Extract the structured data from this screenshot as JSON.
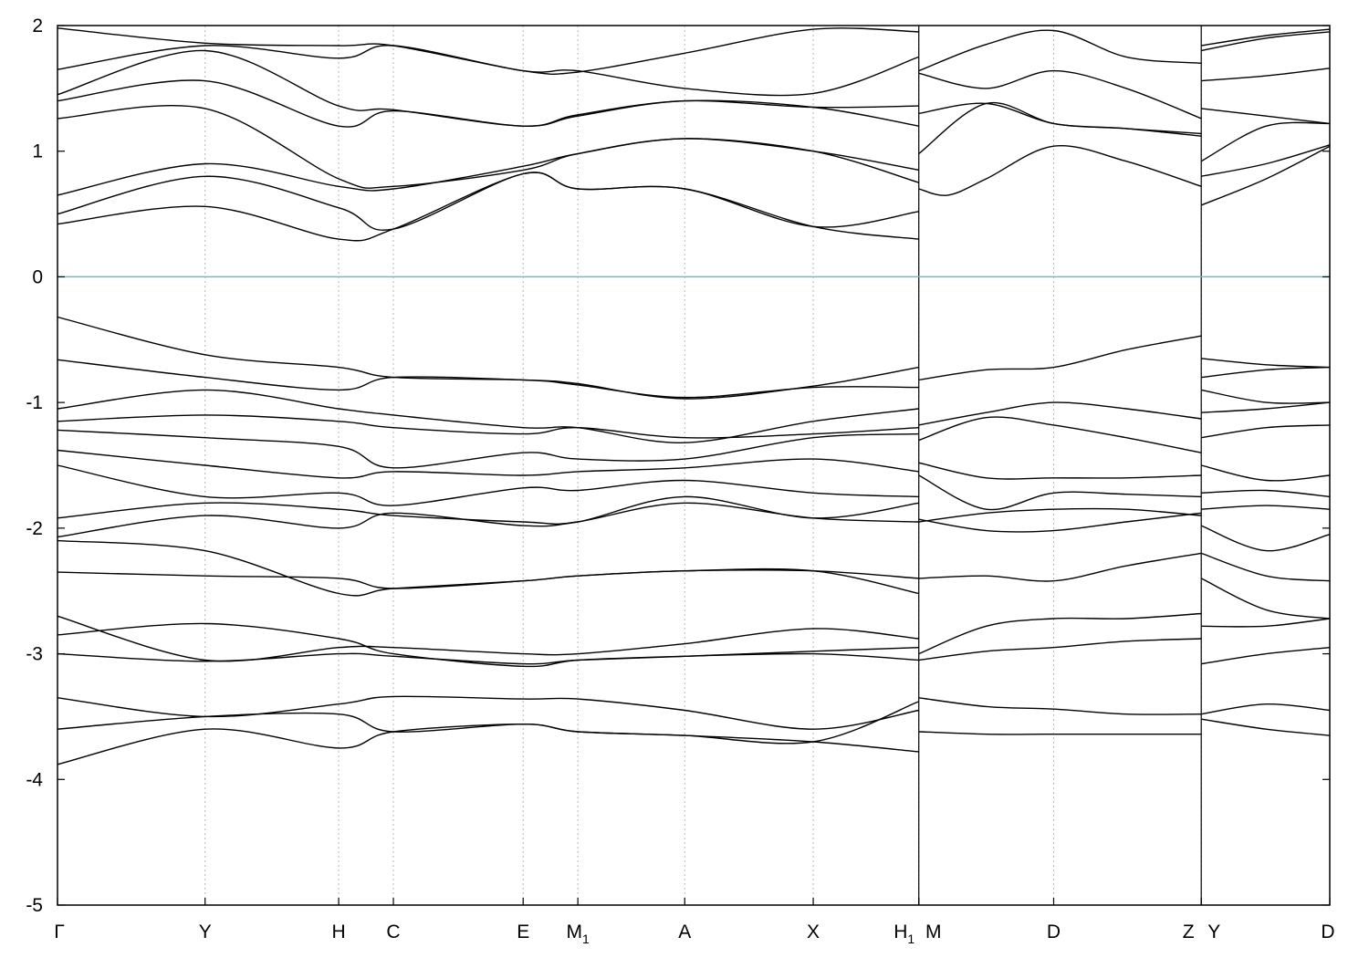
{
  "chart_data": {
    "type": "line",
    "title": "",
    "xlabel": "",
    "ylabel": "",
    "ylim": [
      -5,
      2
    ],
    "yticks": [
      "2",
      "1",
      "0",
      "-1",
      "-2",
      "-3",
      "-4",
      "-5"
    ],
    "ytick_values": [
      2,
      1,
      0,
      -1,
      -2,
      -3,
      -4,
      -5
    ],
    "grid": "vertical dashed lines at high-symmetry points",
    "legend": "none",
    "fermi_level": {
      "value": 0,
      "color": "#6fb7c9"
    },
    "band_color": "#000000",
    "kpoints": [
      {
        "label": "Γ",
        "sub": "",
        "x": 0.0
      },
      {
        "label": "Y",
        "sub": "",
        "x": 1.16
      },
      {
        "label": "H",
        "sub": "",
        "x": 2.21
      },
      {
        "label": "C",
        "sub": "",
        "x": 2.64
      },
      {
        "label": "E",
        "sub": "",
        "x": 3.66
      },
      {
        "label": "M",
        "sub": "1",
        "x": 4.09
      },
      {
        "label": "A",
        "sub": "",
        "x": 4.93
      },
      {
        "label": "X",
        "sub": "",
        "x": 5.94
      },
      {
        "label": "H",
        "sub": "1",
        "x": 6.77
      },
      {
        "label": "M",
        "sub": "",
        "x": 6.77
      },
      {
        "label": "D",
        "sub": "",
        "x": 7.83
      },
      {
        "label": "Z",
        "sub": "",
        "x": 8.99
      },
      {
        "label": "Y",
        "sub": "",
        "x": 8.99
      },
      {
        "label": "D",
        "sub": "",
        "x": 10.0
      }
    ],
    "segments": [
      [
        0,
        6.77
      ],
      [
        6.77,
        8.99
      ],
      [
        8.99,
        10.0
      ]
    ],
    "series": [
      {
        "segment": 0,
        "x": [
          0,
          1.16,
          2.21,
          2.64,
          3.66,
          4.09,
          4.93,
          5.94,
          6.77
        ],
        "values": [
          -0.32,
          -0.62,
          -0.72,
          -0.8,
          -0.82,
          -0.85,
          -0.97,
          -0.87,
          -0.72
        ]
      },
      {
        "segment": 0,
        "x": [
          0,
          1.16,
          2.21,
          2.64,
          3.66,
          4.09,
          4.93,
          5.94,
          6.77
        ],
        "values": [
          -0.66,
          -0.8,
          -0.9,
          -0.8,
          -0.82,
          -0.86,
          -0.96,
          -0.88,
          -0.88
        ]
      },
      {
        "segment": 0,
        "x": [
          0,
          1.16,
          2.21,
          2.64,
          3.66,
          4.09,
          4.93,
          5.94,
          6.77
        ],
        "values": [
          -1.05,
          -0.9,
          -1.05,
          -1.1,
          -1.2,
          -1.2,
          -1.32,
          -1.15,
          -1.05
        ]
      },
      {
        "segment": 0,
        "x": [
          0,
          1.16,
          2.21,
          2.64,
          3.66,
          4.09,
          4.93,
          5.94,
          6.77
        ],
        "values": [
          -1.15,
          -1.1,
          -1.15,
          -1.2,
          -1.25,
          -1.2,
          -1.28,
          -1.25,
          -1.2
        ]
      },
      {
        "segment": 0,
        "x": [
          0,
          1.16,
          2.21,
          2.64,
          3.66,
          4.09,
          4.93,
          5.94,
          6.77
        ],
        "values": [
          -1.22,
          -1.28,
          -1.35,
          -1.52,
          -1.4,
          -1.45,
          -1.45,
          -1.28,
          -1.25
        ]
      },
      {
        "segment": 0,
        "x": [
          0,
          1.16,
          2.21,
          2.64,
          3.66,
          4.09,
          4.93,
          5.94,
          6.77
        ],
        "values": [
          -1.38,
          -1.5,
          -1.6,
          -1.55,
          -1.58,
          -1.55,
          -1.52,
          -1.45,
          -1.55
        ]
      },
      {
        "segment": 0,
        "x": [
          0,
          1.16,
          2.21,
          2.64,
          3.66,
          4.09,
          4.93,
          5.94,
          6.77
        ],
        "values": [
          -1.5,
          -1.75,
          -1.72,
          -1.82,
          -1.68,
          -1.7,
          -1.62,
          -1.72,
          -1.75
        ]
      },
      {
        "segment": 0,
        "x": [
          0,
          1.16,
          2.21,
          2.64,
          3.66,
          4.09,
          4.93,
          5.94,
          6.77
        ],
        "values": [
          -1.92,
          -1.8,
          -1.85,
          -1.9,
          -1.95,
          -1.95,
          -1.75,
          -1.92,
          -1.8
        ]
      },
      {
        "segment": 0,
        "x": [
          0,
          1.16,
          2.21,
          2.64,
          3.66,
          4.09,
          4.93,
          5.94,
          6.77
        ],
        "values": [
          -2.07,
          -1.9,
          -2.0,
          -1.88,
          -1.98,
          -1.95,
          -1.8,
          -1.92,
          -1.95
        ]
      },
      {
        "segment": 0,
        "x": [
          0,
          1.16,
          2.21,
          2.64,
          3.66,
          4.09,
          4.93,
          5.94,
          6.77
        ],
        "values": [
          -2.1,
          -2.18,
          -2.52,
          -2.48,
          -2.42,
          -2.38,
          -2.34,
          -2.34,
          -2.52
        ]
      },
      {
        "segment": 0,
        "x": [
          0,
          1.16,
          2.21,
          2.64,
          3.66,
          4.09,
          4.93,
          5.94,
          6.77
        ],
        "values": [
          -2.35,
          -2.38,
          -2.4,
          -2.48,
          -2.42,
          -2.38,
          -2.34,
          -2.34,
          -2.4
        ]
      },
      {
        "segment": 0,
        "x": [
          0,
          1.16,
          2.21,
          2.64,
          3.66,
          4.09,
          4.93,
          5.94,
          6.77
        ],
        "values": [
          -2.7,
          -3.05,
          -2.95,
          -2.95,
          -3.0,
          -3.0,
          -2.92,
          -2.8,
          -2.88
        ]
      },
      {
        "segment": 0,
        "x": [
          0,
          1.16,
          2.21,
          2.64,
          3.66,
          4.09,
          4.93,
          5.94,
          6.77
        ],
        "values": [
          -2.85,
          -2.76,
          -2.88,
          -3.0,
          -3.1,
          -3.05,
          -3.02,
          -3.0,
          -3.05
        ]
      },
      {
        "segment": 0,
        "x": [
          0,
          1.16,
          2.21,
          2.64,
          3.66,
          4.09,
          4.93,
          5.94,
          6.77
        ],
        "values": [
          -3.0,
          -3.06,
          -3.0,
          -3.02,
          -3.08,
          -3.05,
          -3.02,
          -2.98,
          -2.95
        ]
      },
      {
        "segment": 0,
        "x": [
          0,
          1.16,
          2.21,
          2.64,
          3.66,
          4.09,
          4.93,
          5.94,
          6.77
        ],
        "values": [
          -3.35,
          -3.5,
          -3.4,
          -3.34,
          -3.36,
          -3.36,
          -3.45,
          -3.6,
          -3.45
        ]
      },
      {
        "segment": 0,
        "x": [
          0,
          1.16,
          2.21,
          2.64,
          3.66,
          4.09,
          4.93,
          5.94,
          6.77
        ],
        "values": [
          -3.6,
          -3.5,
          -3.48,
          -3.62,
          -3.56,
          -3.62,
          -3.65,
          -3.7,
          -3.38
        ]
      },
      {
        "segment": 0,
        "x": [
          0,
          1.16,
          2.21,
          2.64,
          3.66,
          4.09,
          4.93,
          5.94,
          6.77
        ],
        "values": [
          -3.88,
          -3.6,
          -3.75,
          -3.62,
          -3.56,
          -3.62,
          -3.65,
          -3.7,
          -3.78
        ]
      },
      {
        "segment": 0,
        "x": [
          0,
          1.16,
          2.21,
          2.64,
          3.66,
          4.09,
          4.93,
          5.94,
          6.77
        ],
        "values": [
          0.42,
          0.56,
          0.3,
          0.38,
          0.82,
          0.7,
          0.7,
          0.4,
          0.3
        ]
      },
      {
        "segment": 0,
        "x": [
          0,
          1.16,
          2.21,
          2.64,
          3.66,
          4.09,
          4.93,
          5.94,
          6.77
        ],
        "values": [
          0.5,
          0.8,
          0.55,
          0.38,
          0.82,
          0.7,
          0.7,
          0.4,
          0.52
        ]
      },
      {
        "segment": 0,
        "x": [
          0,
          1.16,
          2.21,
          2.64,
          3.66,
          4.09,
          4.93,
          5.94,
          6.77
        ],
        "values": [
          0.65,
          0.9,
          0.72,
          0.7,
          0.88,
          0.98,
          1.1,
          1.0,
          0.75
        ]
      },
      {
        "segment": 0,
        "x": [
          0,
          1.16,
          2.21,
          2.64,
          3.66,
          4.09,
          4.93,
          5.94,
          6.77
        ],
        "values": [
          1.26,
          1.34,
          0.78,
          0.72,
          0.85,
          0.98,
          1.1,
          1.0,
          0.85
        ]
      },
      {
        "segment": 0,
        "x": [
          0,
          1.16,
          2.21,
          2.64,
          3.66,
          4.09,
          4.93,
          5.94,
          6.77
        ],
        "values": [
          1.4,
          1.56,
          1.2,
          1.32,
          1.2,
          1.28,
          1.4,
          1.35,
          1.2
        ]
      },
      {
        "segment": 0,
        "x": [
          0,
          1.16,
          2.21,
          2.64,
          3.66,
          4.09,
          4.93,
          5.94,
          6.77
        ],
        "values": [
          1.45,
          1.8,
          1.36,
          1.33,
          1.2,
          1.29,
          1.4,
          1.35,
          1.36
        ]
      },
      {
        "segment": 0,
        "x": [
          0,
          1.16,
          2.21,
          2.64,
          3.66,
          4.09,
          4.93,
          5.94,
          6.77
        ],
        "values": [
          1.65,
          1.84,
          1.74,
          1.84,
          1.64,
          1.64,
          1.5,
          1.46,
          1.75
        ]
      },
      {
        "segment": 0,
        "x": [
          0,
          1.16,
          2.21,
          2.64,
          3.66,
          4.09,
          4.93,
          5.94,
          6.77
        ],
        "values": [
          1.98,
          1.86,
          1.84,
          1.84,
          1.64,
          1.63,
          1.78,
          1.97,
          1.95
        ]
      },
      {
        "segment": 1,
        "x": [
          6.77,
          7.3,
          7.83,
          8.4,
          8.99
        ],
        "values": [
          -0.82,
          -0.74,
          -0.72,
          -0.58,
          -0.47
        ]
      },
      {
        "segment": 1,
        "x": [
          6.77,
          7.3,
          7.83,
          8.4,
          8.99
        ],
        "values": [
          -1.18,
          -1.08,
          -1.0,
          -1.05,
          -1.13
        ]
      },
      {
        "segment": 1,
        "x": [
          6.77,
          7.3,
          7.83,
          8.4,
          8.99
        ],
        "values": [
          -1.3,
          -1.12,
          -1.18,
          -1.28,
          -1.4
        ]
      },
      {
        "segment": 1,
        "x": [
          6.77,
          7.3,
          7.83,
          8.4,
          8.99
        ],
        "values": [
          -1.48,
          -1.6,
          -1.6,
          -1.6,
          -1.58
        ]
      },
      {
        "segment": 1,
        "x": [
          6.77,
          7.3,
          7.83,
          8.4,
          8.99
        ],
        "values": [
          -1.58,
          -1.85,
          -1.72,
          -1.73,
          -1.75
        ]
      },
      {
        "segment": 1,
        "x": [
          6.77,
          7.3,
          7.83,
          8.4,
          8.99
        ],
        "values": [
          -1.93,
          -2.02,
          -2.02,
          -1.95,
          -1.88
        ]
      },
      {
        "segment": 1,
        "x": [
          6.77,
          7.3,
          7.83,
          8.4,
          8.99
        ],
        "values": [
          -1.95,
          -1.88,
          -1.85,
          -1.85,
          -1.9
        ]
      },
      {
        "segment": 1,
        "x": [
          6.77,
          7.3,
          7.83,
          8.4,
          8.99
        ],
        "values": [
          -2.4,
          -2.38,
          -2.42,
          -2.3,
          -2.2
        ]
      },
      {
        "segment": 1,
        "x": [
          6.77,
          7.3,
          7.83,
          8.4,
          8.99
        ],
        "values": [
          -3.0,
          -2.78,
          -2.72,
          -2.72,
          -2.68
        ]
      },
      {
        "segment": 1,
        "x": [
          6.77,
          7.3,
          7.83,
          8.4,
          8.99
        ],
        "values": [
          -3.05,
          -2.98,
          -2.95,
          -2.9,
          -2.88
        ]
      },
      {
        "segment": 1,
        "x": [
          6.77,
          7.3,
          7.83,
          8.4,
          8.99
        ],
        "values": [
          -3.35,
          -3.42,
          -3.44,
          -3.48,
          -3.48
        ]
      },
      {
        "segment": 1,
        "x": [
          6.77,
          7.3,
          7.83,
          8.4,
          8.99
        ],
        "values": [
          -3.62,
          -3.64,
          -3.64,
          -3.64,
          -3.64
        ]
      },
      {
        "segment": 1,
        "x": [
          6.77,
          7.0,
          7.3,
          7.83,
          8.4,
          8.99
        ],
        "values": [
          0.7,
          0.65,
          0.78,
          1.04,
          0.92,
          0.72
        ]
      },
      {
        "segment": 1,
        "x": [
          6.77,
          7.3,
          7.83,
          8.4,
          8.99
        ],
        "values": [
          0.98,
          1.38,
          1.22,
          1.18,
          1.12
        ]
      },
      {
        "segment": 1,
        "x": [
          6.77,
          7.3,
          7.83,
          8.4,
          8.99
        ],
        "values": [
          1.3,
          1.38,
          1.22,
          1.18,
          1.14
        ]
      },
      {
        "segment": 1,
        "x": [
          6.77,
          7.3,
          7.83,
          8.4,
          8.99
        ],
        "values": [
          1.62,
          1.5,
          1.64,
          1.5,
          1.26
        ]
      },
      {
        "segment": 1,
        "x": [
          6.77,
          7.3,
          7.83,
          8.4,
          8.99
        ],
        "values": [
          1.64,
          1.85,
          1.96,
          1.75,
          1.7
        ]
      },
      {
        "segment": 2,
        "x": [
          8.99,
          9.5,
          10.0
        ],
        "values": [
          -0.65,
          -0.7,
          -0.72
        ]
      },
      {
        "segment": 2,
        "x": [
          8.99,
          9.5,
          10.0
        ],
        "values": [
          -0.8,
          -0.74,
          -0.72
        ]
      },
      {
        "segment": 2,
        "x": [
          8.99,
          9.5,
          10.0
        ],
        "values": [
          -0.9,
          -1.0,
          -1.0
        ]
      },
      {
        "segment": 2,
        "x": [
          8.99,
          9.5,
          10.0
        ],
        "values": [
          -1.08,
          -1.05,
          -1.0
        ]
      },
      {
        "segment": 2,
        "x": [
          8.99,
          9.5,
          10.0
        ],
        "values": [
          -1.28,
          -1.2,
          -1.18
        ]
      },
      {
        "segment": 2,
        "x": [
          8.99,
          9.5,
          10.0
        ],
        "values": [
          -1.5,
          -1.62,
          -1.58
        ]
      },
      {
        "segment": 2,
        "x": [
          8.99,
          9.5,
          10.0
        ],
        "values": [
          -1.72,
          -1.7,
          -1.75
        ]
      },
      {
        "segment": 2,
        "x": [
          8.99,
          9.5,
          10.0
        ],
        "values": [
          -1.85,
          -1.82,
          -1.85
        ]
      },
      {
        "segment": 2,
        "x": [
          8.99,
          9.5,
          10.0
        ],
        "values": [
          -1.98,
          -2.18,
          -2.05
        ]
      },
      {
        "segment": 2,
        "x": [
          8.99,
          9.5,
          10.0
        ],
        "values": [
          -2.2,
          -2.38,
          -2.42
        ]
      },
      {
        "segment": 2,
        "x": [
          8.99,
          9.5,
          10.0
        ],
        "values": [
          -2.4,
          -2.65,
          -2.72
        ]
      },
      {
        "segment": 2,
        "x": [
          8.99,
          9.5,
          10.0
        ],
        "values": [
          -2.78,
          -2.78,
          -2.72
        ]
      },
      {
        "segment": 2,
        "x": [
          8.99,
          9.5,
          10.0
        ],
        "values": [
          -3.08,
          -3.0,
          -2.95
        ]
      },
      {
        "segment": 2,
        "x": [
          8.99,
          9.5,
          10.0
        ],
        "values": [
          -3.48,
          -3.4,
          -3.45
        ]
      },
      {
        "segment": 2,
        "x": [
          8.99,
          9.5,
          10.0
        ],
        "values": [
          -3.52,
          -3.6,
          -3.65
        ]
      },
      {
        "segment": 2,
        "x": [
          8.99,
          9.5,
          10.0
        ],
        "values": [
          0.57,
          0.78,
          1.04
        ]
      },
      {
        "segment": 2,
        "x": [
          8.99,
          9.5,
          10.0
        ],
        "values": [
          0.8,
          0.9,
          1.05
        ]
      },
      {
        "segment": 2,
        "x": [
          8.99,
          9.5,
          10.0
        ],
        "values": [
          0.92,
          1.2,
          1.22
        ]
      },
      {
        "segment": 2,
        "x": [
          8.99,
          9.5,
          10.0
        ],
        "values": [
          1.34,
          1.28,
          1.22
        ]
      },
      {
        "segment": 2,
        "x": [
          8.99,
          9.5,
          10.0
        ],
        "values": [
          1.56,
          1.6,
          1.66
        ]
      },
      {
        "segment": 2,
        "x": [
          8.99,
          9.5,
          10.0
        ],
        "values": [
          1.8,
          1.9,
          1.95
        ]
      },
      {
        "segment": 2,
        "x": [
          8.99,
          9.5,
          10.0
        ],
        "values": [
          1.84,
          1.92,
          1.97
        ]
      }
    ]
  }
}
